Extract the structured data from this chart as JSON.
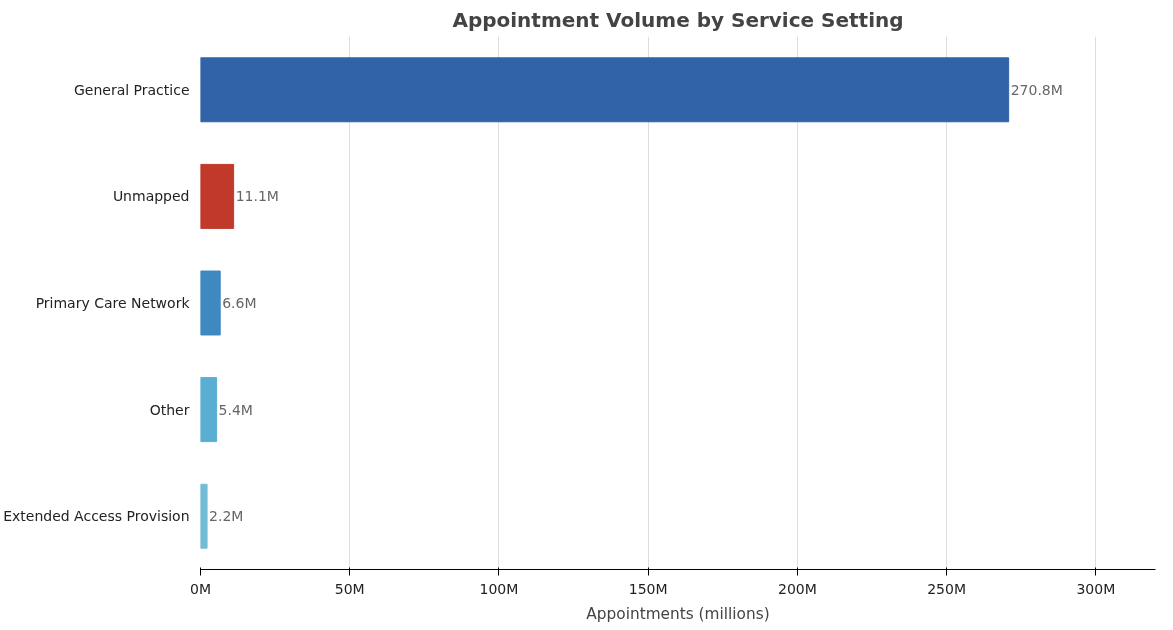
{
  "chart_data": {
    "type": "bar",
    "orientation": "horizontal",
    "title": "Appointment Volume by Service Setting",
    "xlabel": "Appointments (millions)",
    "categories": [
      "General Practice",
      "Unmapped",
      "Primary Care Network",
      "Other",
      "Extended Access Provision"
    ],
    "values": [
      270.8,
      11.1,
      6.6,
      5.4,
      2.2
    ],
    "colors": [
      "#3063a8",
      "#c0392b",
      "#3f88c0",
      "#5aaed4",
      "#73bcd6"
    ],
    "value_labels": [
      "270.8M",
      "11.1M",
      "6.6M",
      "5.4M",
      "2.2M"
    ],
    "xlim": [
      0,
      320
    ],
    "xticks": [
      {
        "value": 0,
        "label": "0M"
      },
      {
        "value": 50,
        "label": "50M"
      },
      {
        "value": 100,
        "label": "100M"
      },
      {
        "value": 150,
        "label": "150M"
      },
      {
        "value": 200,
        "label": "200M"
      },
      {
        "value": 250,
        "label": "250M"
      },
      {
        "value": 300,
        "label": "300M"
      }
    ],
    "grid": "x"
  }
}
